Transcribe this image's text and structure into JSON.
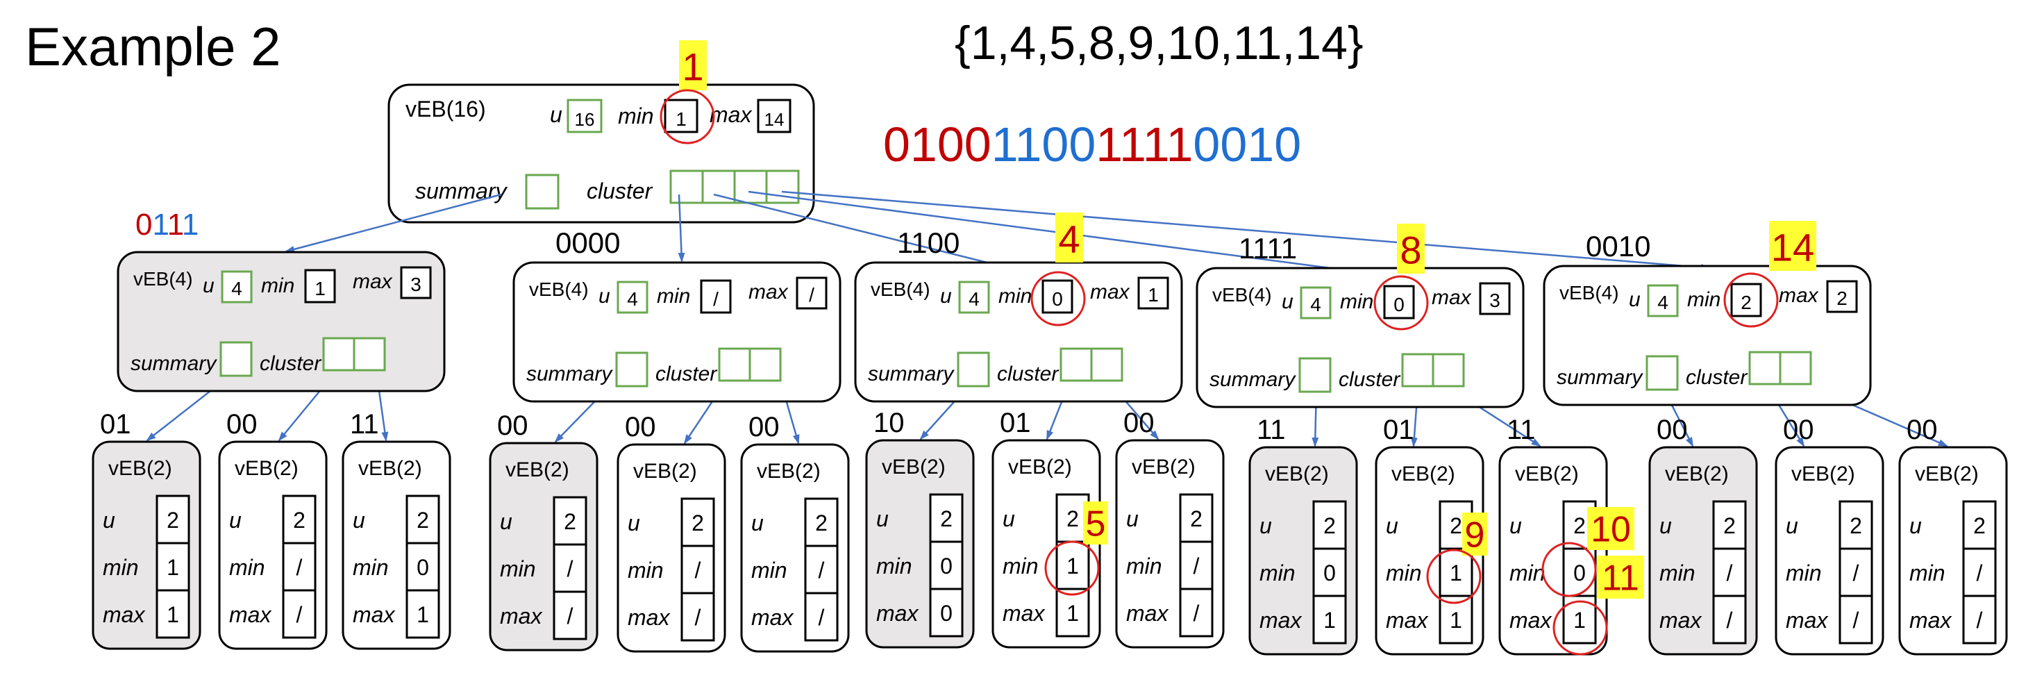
{
  "title": "Example 2",
  "set_text": "{1,4,5,8,9,10,11,14}",
  "bitstring": [
    {
      "text": "0100",
      "color": "#c00000"
    },
    {
      "text": "1100",
      "color": "#1f6fd1"
    },
    {
      "text": "1111",
      "color": "#c00000"
    },
    {
      "text": "0010",
      "color": "#1f6fd1"
    }
  ],
  "summary_bits": [
    {
      "text": "0",
      "color": "#c00000"
    },
    {
      "text": "1",
      "color": "#1f6fd1"
    },
    {
      "text": "1",
      "color": "#c00000"
    },
    {
      "text": "1",
      "color": "#1f6fd1"
    }
  ],
  "labels": {
    "u": "u",
    "min": "min",
    "max": "max",
    "summary": "summary",
    "cluster": "cluster"
  },
  "colors": {
    "highlight": "#ffff33",
    "highlight_text": "#c00000",
    "circle": "#e02020",
    "green": "#6aa84f",
    "arrow": "#4472c4",
    "gray_fill": "#e8e6e6"
  },
  "root": {
    "name": "vEB(16)",
    "u": "16",
    "min": "1",
    "max": "14"
  },
  "level2": [
    {
      "name": "vEB(4)",
      "u": "4",
      "min": "1",
      "max": "3",
      "label": "",
      "gray": true
    },
    {
      "name": "vEB(4)",
      "u": "4",
      "min": "/",
      "max": "/",
      "label": "0000",
      "gray": false
    },
    {
      "name": "vEB(4)",
      "u": "4",
      "min": "0",
      "max": "1",
      "label": "1100",
      "gray": false
    },
    {
      "name": "vEB(4)",
      "u": "4",
      "min": "0",
      "max": "3",
      "label": "1111",
      "gray": false
    },
    {
      "name": "vEB(4)",
      "u": "4",
      "min": "2",
      "max": "2",
      "label": "0010",
      "gray": false
    }
  ],
  "leaves": [
    {
      "label": "01",
      "name": "vEB(2)",
      "u": "2",
      "min": "1",
      "max": "1",
      "gray": true
    },
    {
      "label": "00",
      "name": "vEB(2)",
      "u": "2",
      "min": "/",
      "max": "/",
      "gray": false
    },
    {
      "label": "11",
      "name": "vEB(2)",
      "u": "2",
      "min": "0",
      "max": "1",
      "gray": false
    },
    {
      "label": "00",
      "name": "vEB(2)",
      "u": "2",
      "min": "/",
      "max": "/",
      "gray": true
    },
    {
      "label": "00",
      "name": "vEB(2)",
      "u": "2",
      "min": "/",
      "max": "/",
      "gray": false
    },
    {
      "label": "00",
      "name": "vEB(2)",
      "u": "2",
      "min": "/",
      "max": "/",
      "gray": false
    },
    {
      "label": "10",
      "name": "vEB(2)",
      "u": "2",
      "min": "0",
      "max": "0",
      "gray": true
    },
    {
      "label": "01",
      "name": "vEB(2)",
      "u": "2",
      "min": "1",
      "max": "1",
      "gray": false
    },
    {
      "label": "00",
      "name": "vEB(2)",
      "u": "2",
      "min": "/",
      "max": "/",
      "gray": false
    },
    {
      "label": "11",
      "name": "vEB(2)",
      "u": "2",
      "min": "0",
      "max": "1",
      "gray": true
    },
    {
      "label": "01",
      "name": "vEB(2)",
      "u": "2",
      "min": "1",
      "max": "1",
      "gray": false
    },
    {
      "label": "11",
      "name": "vEB(2)",
      "u": "2",
      "min": "0",
      "max": "1",
      "gray": false
    },
    {
      "label": "00",
      "name": "vEB(2)",
      "u": "2",
      "min": "/",
      "max": "/",
      "gray": true
    },
    {
      "label": "00",
      "name": "vEB(2)",
      "u": "2",
      "min": "/",
      "max": "/",
      "gray": false
    },
    {
      "label": "00",
      "name": "vEB(2)",
      "u": "2",
      "min": "/",
      "max": "/",
      "gray": false
    }
  ],
  "annotations": {
    "root_min": "1",
    "c1_min": "4",
    "c2_min": "8",
    "c3_min": "14",
    "leaf7_min": "5",
    "leaf10_min": "9",
    "leaf11_min": "10",
    "leaf11_max": "11"
  }
}
